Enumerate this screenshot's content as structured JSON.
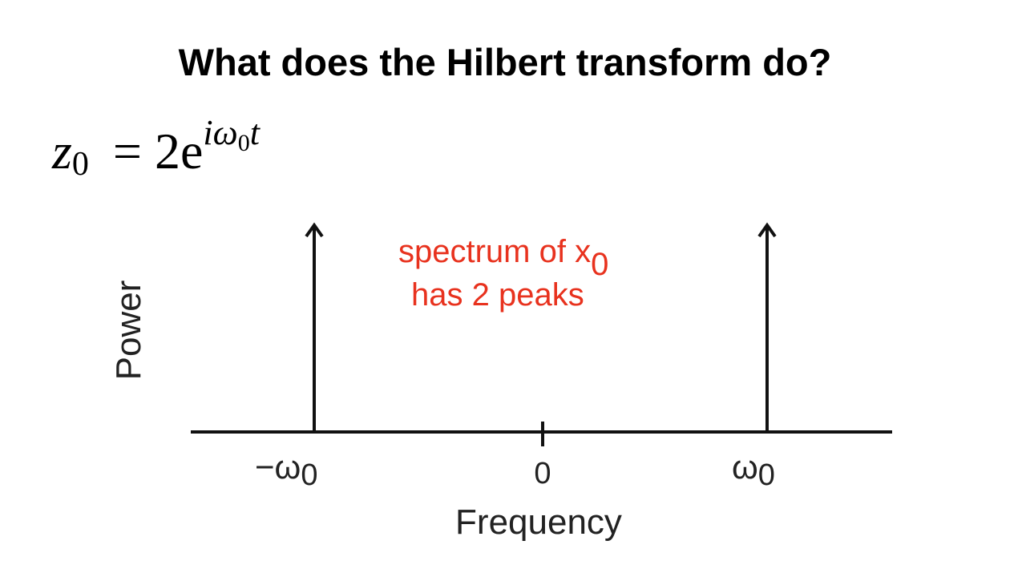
{
  "title": "What does the Hilbert transform do?",
  "equation": {
    "lhs": "z",
    "lhs_sub": "0",
    "rhs": "= 2e",
    "sup": "iω",
    "sup_sub": "0",
    "sup_tail": "t"
  },
  "annotation": {
    "line1": "spectrum of x",
    "line1_sub": "0",
    "line2": "has 2 peaks"
  },
  "axes": {
    "x_label": "Frequency",
    "y_label": "Power",
    "ticks": [
      {
        "text": "−ω",
        "sub": "0"
      },
      {
        "text": "0"
      },
      {
        "text": "ω",
        "sub": "0"
      }
    ]
  }
}
